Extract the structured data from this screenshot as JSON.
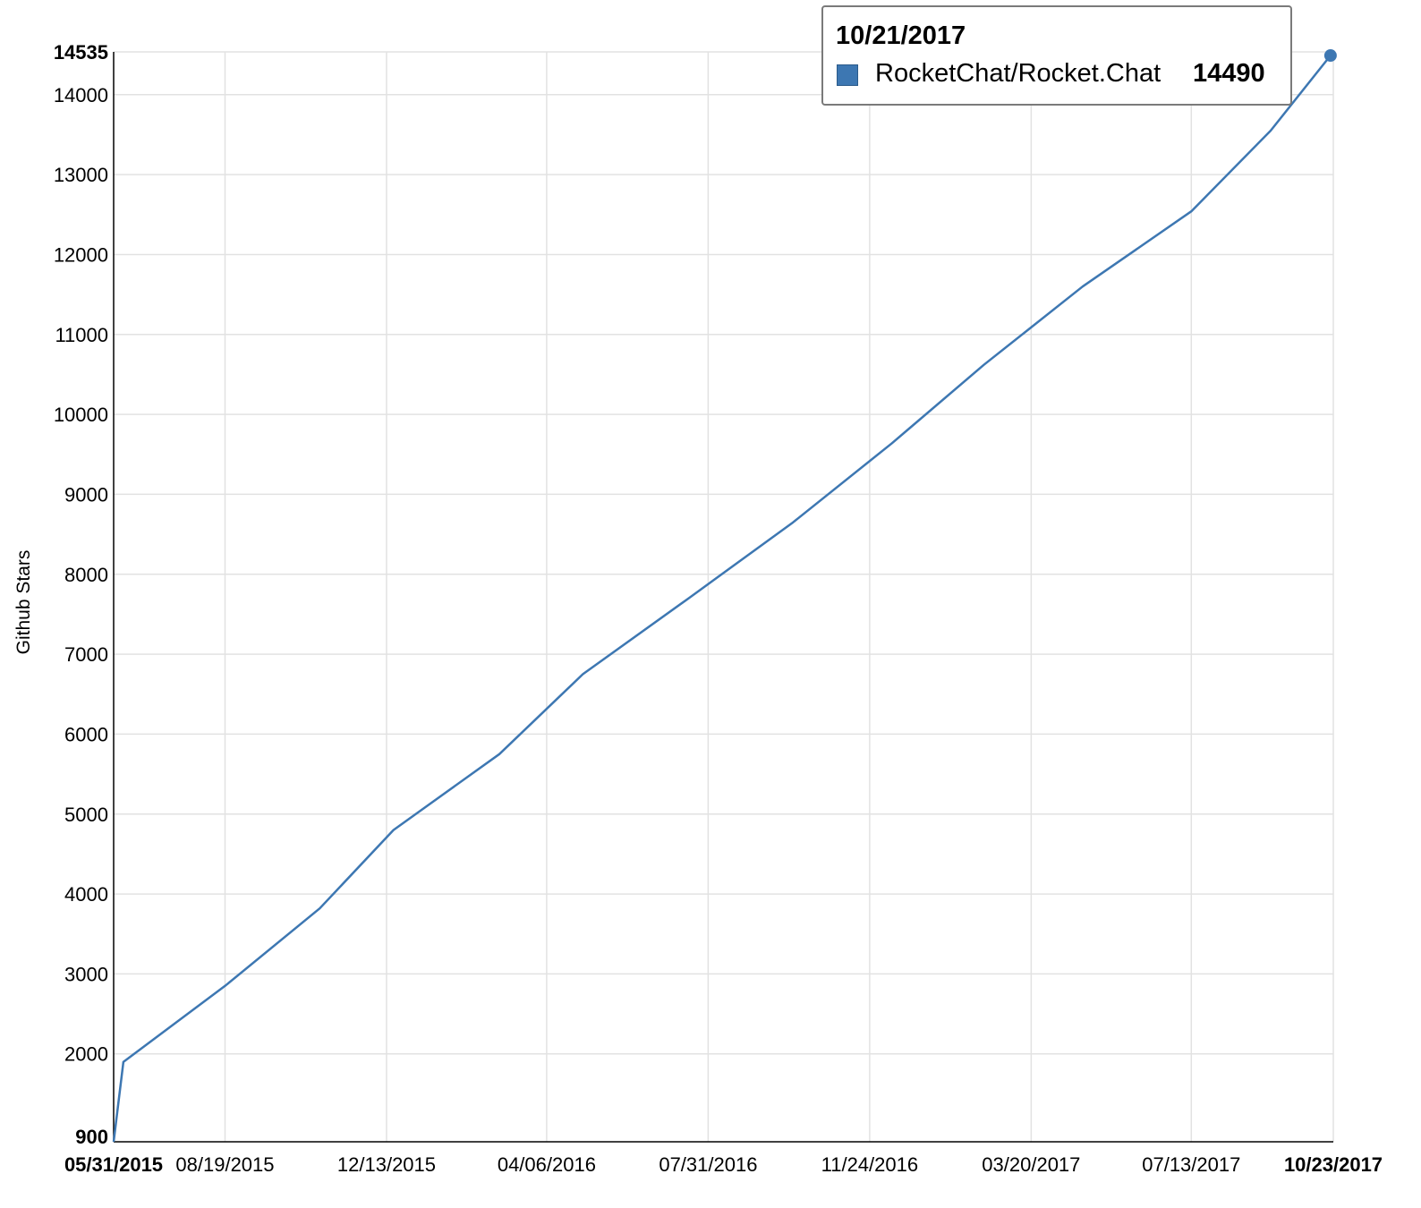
{
  "chart_data": {
    "type": "line",
    "ylabel": "Github Stars",
    "xlabel": "",
    "x_tick_labels": [
      "05/31/2015",
      "08/19/2015",
      "12/13/2015",
      "04/06/2016",
      "07/31/2016",
      "11/24/2016",
      "03/20/2017",
      "07/13/2017",
      "10/23/2017"
    ],
    "x_tick_dates": [
      "2015-05-31",
      "2015-08-19",
      "2015-12-13",
      "2016-04-06",
      "2016-07-31",
      "2016-11-24",
      "2017-03-20",
      "2017-07-13",
      "2017-10-23"
    ],
    "y_tick_labels": [
      "900",
      "2000",
      "3000",
      "4000",
      "5000",
      "6000",
      "7000",
      "8000",
      "9000",
      "10000",
      "11000",
      "12000",
      "13000",
      "14000",
      "14535"
    ],
    "xlim": [
      "2015-05-31",
      "2017-10-23"
    ],
    "ylim": [
      900,
      14535
    ],
    "grid": true,
    "legend_position": "top-right",
    "color": "#3d77b2",
    "series": [
      {
        "name": "RocketChat/Rocket.Chat",
        "x": [
          "2015-05-31",
          "2015-06-07",
          "2015-08-19",
          "2015-10-26",
          "2015-12-18",
          "2016-03-03",
          "2016-05-02",
          "2016-07-17",
          "2016-09-30",
          "2016-12-10",
          "2017-02-14",
          "2017-04-26",
          "2017-07-13",
          "2017-09-08",
          "2017-10-21"
        ],
        "y": [
          900,
          1900,
          2850,
          3820,
          4800,
          5750,
          6750,
          7700,
          8650,
          9640,
          10620,
          11600,
          12540,
          13550,
          14490
        ]
      }
    ],
    "tooltip": {
      "date": "10/21/2017",
      "series": "RocketChat/Rocket.Chat",
      "value": "14490"
    },
    "legend": [
      "RocketChat/Rocket.Ch..."
    ]
  }
}
